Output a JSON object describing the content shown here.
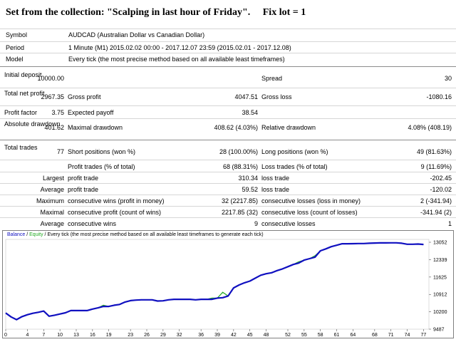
{
  "header": {
    "title": "Set from the collection: \"Scalping in last hour of Friday\".",
    "fix_lot": "Fix lot = 1"
  },
  "info": {
    "symbol_label": "Symbol",
    "symbol_value": "AUDCAD (Australian Dollar vs Canadian Dollar)",
    "period_label": "Period",
    "period_value": "1 Minute (M1) 2015.02.02 00:00 - 2017.12.07 23:59 (2015.02.01 - 2017.12.08)",
    "model_label": "Model",
    "model_value": "Every tick (the most precise method based on all available least timeframes)"
  },
  "stats": {
    "initial_deposit_label": "Initial deposit",
    "initial_deposit": "10000.00",
    "spread_label": "Spread",
    "spread": "30",
    "total_net_profit_label": "Total net profit",
    "total_net_profit": "2967.35",
    "gross_profit_label": "Gross profit",
    "gross_profit": "4047.51",
    "gross_loss_label": "Gross loss",
    "gross_loss": "-1080.16",
    "profit_factor_label": "Profit factor",
    "profit_factor": "3.75",
    "expected_payoff_label": "Expected payoff",
    "expected_payoff": "38.54",
    "absolute_drawdown_label": "Absolute drawdown",
    "absolute_drawdown": "401.62",
    "maximal_drawdown_label": "Maximal drawdown",
    "maximal_drawdown": "408.62 (4.03%)",
    "relative_drawdown_label": "Relative drawdown",
    "relative_drawdown": "4.08% (408.19)",
    "total_trades_label": "Total trades",
    "total_trades": "77",
    "short_positions_label": "Short positions (won %)",
    "short_positions": "28 (100.00%)",
    "long_positions_label": "Long positions (won %)",
    "long_positions": "49 (81.63%)",
    "profit_trades_label": "Profit trades (% of total)",
    "profit_trades": "68 (88.31%)",
    "loss_trades_label": "Loss trades (% of total)",
    "loss_trades": "9 (11.69%)",
    "largest_label": "Largest",
    "largest_profit_label": "profit trade",
    "largest_profit": "310.34",
    "largest_loss_label": "loss trade",
    "largest_loss": "-202.45",
    "average_label": "Average",
    "average_profit_label": "profit trade",
    "average_profit": "59.52",
    "average_loss_label": "loss trade",
    "average_loss": "-120.02",
    "maximum_label": "Maximum",
    "max_cons_wins_label": "consecutive wins (profit in money)",
    "max_cons_wins": "32 (2217.85)",
    "max_cons_losses_label": "consecutive losses (loss in money)",
    "max_cons_losses": "2 (-341.94)",
    "maximal_label": "Maximal",
    "maximal_cons_profit_label": "consecutive profit (count of wins)",
    "maximal_cons_profit": "2217.85 (32)",
    "maximal_cons_loss_label": "consecutive loss (count of losses)",
    "maximal_cons_loss": "-341.94 (2)",
    "average2_label": "Average",
    "avg_cons_wins_label": "consecutive wins",
    "avg_cons_wins": "9",
    "avg_cons_losses_label": "consecutive losses",
    "avg_cons_losses": "1"
  },
  "chart_legend": {
    "balance": "Balance",
    "sep": " / ",
    "equity": "Equity",
    "rest": " / Every tick (the most precise method based on all available least timeframes to generate each tick)"
  },
  "colors": {
    "balance": "#1010c0",
    "equity": "#22aa22"
  },
  "chart_data": {
    "type": "line",
    "x_ticks": [
      "0",
      "4",
      "7",
      "10",
      "13",
      "16",
      "19",
      "23",
      "26",
      "29",
      "32",
      "36",
      "39",
      "42",
      "45",
      "48",
      "52",
      "55",
      "58",
      "61",
      "64",
      "68",
      "71",
      "74",
      "77"
    ],
    "y_ticks": [
      "13052",
      "12339",
      "11625",
      "10912",
      "10200",
      "9487"
    ],
    "xlim": [
      0,
      78
    ],
    "ylim": [
      9487,
      13052
    ],
    "series": [
      {
        "x": [
          0,
          1,
          2,
          3,
          4,
          5,
          6,
          7,
          8,
          9,
          10,
          11,
          12,
          13,
          14,
          15,
          16,
          17,
          18,
          19,
          20,
          21,
          22,
          23,
          24,
          25,
          26,
          27,
          28,
          29,
          30,
          31,
          32,
          33,
          34,
          35,
          36,
          37,
          38,
          39,
          40,
          41,
          42,
          43,
          44,
          45,
          46,
          47,
          48,
          49,
          50,
          51,
          52,
          53,
          54,
          55,
          56,
          57,
          58,
          59,
          60,
          61,
          62,
          63,
          64,
          65,
          66,
          67,
          68,
          69,
          70,
          71,
          72,
          73,
          74,
          75,
          76,
          77
        ],
        "y": [
          10150,
          9990,
          9880,
          10000,
          10080,
          10140,
          10180,
          10230,
          10020,
          10060,
          10110,
          10160,
          10250,
          10250,
          10250,
          10250,
          10310,
          10360,
          10420,
          10420,
          10470,
          10500,
          10600,
          10660,
          10680,
          10690,
          10690,
          10690,
          10640,
          10650,
          10690,
          10710,
          10710,
          10710,
          10710,
          10690,
          10710,
          10710,
          10710,
          10760,
          10780,
          10850,
          11180,
          11300,
          11390,
          11460,
          11580,
          11700,
          11760,
          11800,
          11890,
          11960,
          12050,
          12140,
          12200,
          12320,
          12380,
          12440,
          12700,
          12780,
          12870,
          12930,
          12990,
          12990,
          12995,
          13000,
          13000,
          13010,
          13020,
          13025,
          13025,
          13030,
          13030,
          13010,
          12970,
          12970,
          12980,
          12960
        ]
      },
      {
        "x": [
          0,
          1,
          2,
          3,
          4,
          5,
          6,
          7,
          8,
          9,
          10,
          11,
          12,
          13,
          14,
          15,
          16,
          17,
          18,
          19,
          20,
          21,
          22,
          23,
          24,
          25,
          26,
          27,
          28,
          29,
          30,
          31,
          32,
          33,
          34,
          35,
          36,
          37,
          38,
          39,
          40,
          41,
          42,
          43,
          44,
          45,
          46,
          47,
          48,
          49,
          50,
          51,
          52,
          53,
          54,
          55,
          56,
          57,
          58,
          59,
          60,
          61,
          62,
          63,
          64,
          65,
          66,
          67,
          68,
          69,
          70,
          71,
          72,
          73,
          74,
          75,
          76,
          77
        ],
        "y": [
          10150,
          9990,
          9880,
          10000,
          10080,
          10140,
          10180,
          10230,
          10020,
          10060,
          10110,
          10160,
          10250,
          10250,
          10250,
          10250,
          10310,
          10360,
          10470,
          10420,
          10470,
          10500,
          10600,
          10660,
          10680,
          10690,
          10690,
          10690,
          10640,
          10650,
          10690,
          10710,
          10710,
          10710,
          10710,
          10690,
          10710,
          10710,
          10760,
          10760,
          11000,
          10850,
          11180,
          11300,
          11390,
          11460,
          11580,
          11700,
          11760,
          11800,
          11890,
          11960,
          12050,
          12140,
          12250,
          12320,
          12380,
          12500,
          12700,
          12780,
          12870,
          12930,
          12990,
          12990,
          12995,
          13000,
          13000,
          13010,
          13020,
          13025,
          13025,
          13030,
          13030,
          13010,
          12970,
          12970,
          12980,
          12960
        ]
      }
    ]
  }
}
